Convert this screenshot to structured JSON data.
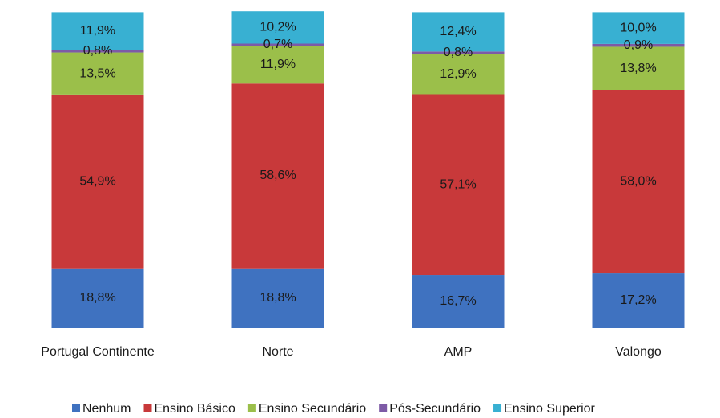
{
  "chart_data": {
    "type": "stacked_bar",
    "categories": [
      "Portugal Continente",
      "Norte",
      "AMP",
      "Valongo"
    ],
    "ylim": [
      0,
      100
    ],
    "series": [
      {
        "name": "Nenhum",
        "color": "#3f72c0",
        "values": [
          18.8,
          18.8,
          16.7,
          17.2
        ],
        "value_labels": [
          "18,8%",
          "18,8%",
          "16,7%",
          "17,2%"
        ]
      },
      {
        "name": "Ensino Básico",
        "color": "#c8393a",
        "values": [
          54.9,
          58.6,
          57.1,
          58.0
        ],
        "value_labels": [
          "54,9%",
          "58,6%",
          "57,1%",
          "58,0%"
        ]
      },
      {
        "name": "Ensino Secundário",
        "color": "#9bbf4a",
        "values": [
          13.5,
          11.9,
          12.9,
          13.8
        ],
        "value_labels": [
          "13,5%",
          "11,9%",
          "12,9%",
          "13,8%"
        ]
      },
      {
        "name": "Pós-Secundário",
        "color": "#7d5aa6",
        "values": [
          0.8,
          0.7,
          0.8,
          0.9
        ],
        "value_labels": [
          "0,8%",
          "0,7%",
          "0,8%",
          "0,9%"
        ]
      },
      {
        "name": "Ensino Superior",
        "color": "#38b0d2",
        "values": [
          11.9,
          10.2,
          12.4,
          10.0
        ],
        "value_labels": [
          "11,9%",
          "10,2%",
          "12,4%",
          "10,0%"
        ]
      }
    ],
    "legend": "bottom"
  }
}
